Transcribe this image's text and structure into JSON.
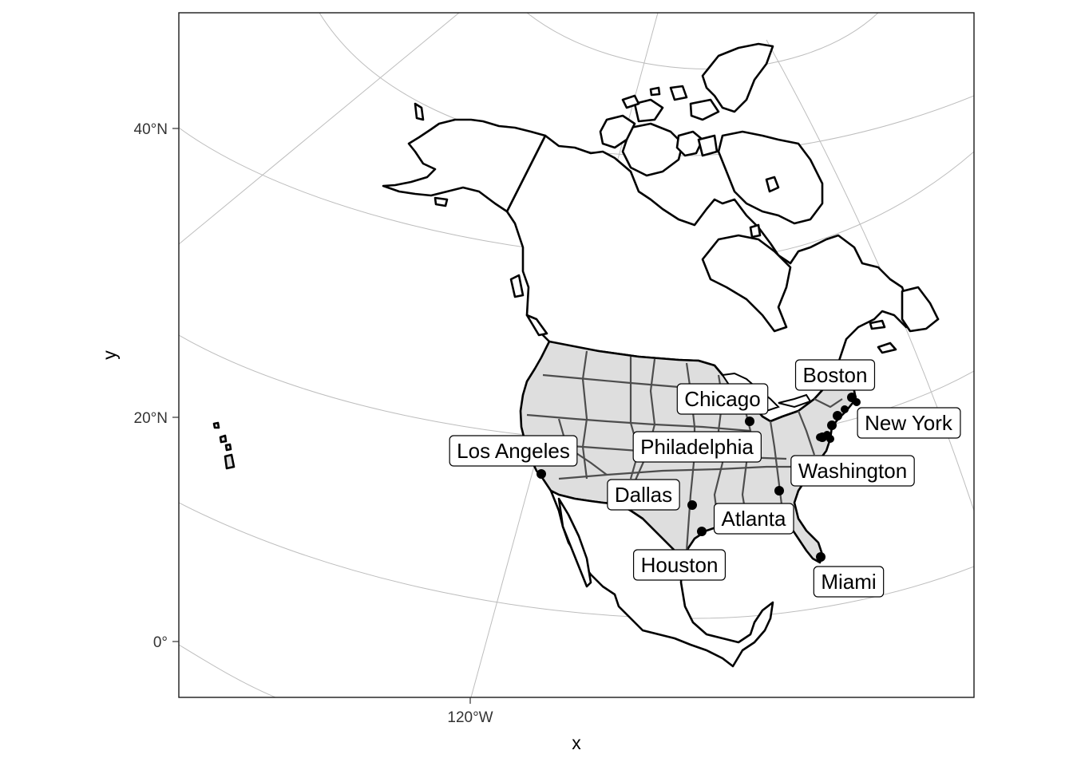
{
  "axes": {
    "x_title": "x",
    "y_title": "y",
    "x_ticks": [
      "120°W"
    ],
    "y_ticks": [
      "40°N",
      "20°N",
      "0°"
    ]
  },
  "cities": [
    {
      "name": "Boston",
      "lon": -71.06,
      "lat": 42.36
    },
    {
      "name": "Chicago",
      "lon": -87.63,
      "lat": 41.88
    },
    {
      "name": "New York",
      "lon": -74.01,
      "lat": 40.71
    },
    {
      "name": "Philadelphia",
      "lon": -75.17,
      "lat": 39.95
    },
    {
      "name": "Los Angeles",
      "lon": -118.24,
      "lat": 34.05
    },
    {
      "name": "Washington",
      "lon": -77.04,
      "lat": 38.91
    },
    {
      "name": "Dallas",
      "lon": -96.8,
      "lat": 32.78
    },
    {
      "name": "Atlanta",
      "lon": -84.39,
      "lat": 33.75
    },
    {
      "name": "Houston",
      "lon": -95.37,
      "lat": 29.76
    },
    {
      "name": "Miami",
      "lon": -80.19,
      "lat": 25.76
    }
  ],
  "colors": {
    "usa_fill": "#dedede",
    "country_outline": "#000000",
    "state_lines": "#4d4d4d",
    "graticule": "#bdbdbd",
    "point": "#000000"
  }
}
